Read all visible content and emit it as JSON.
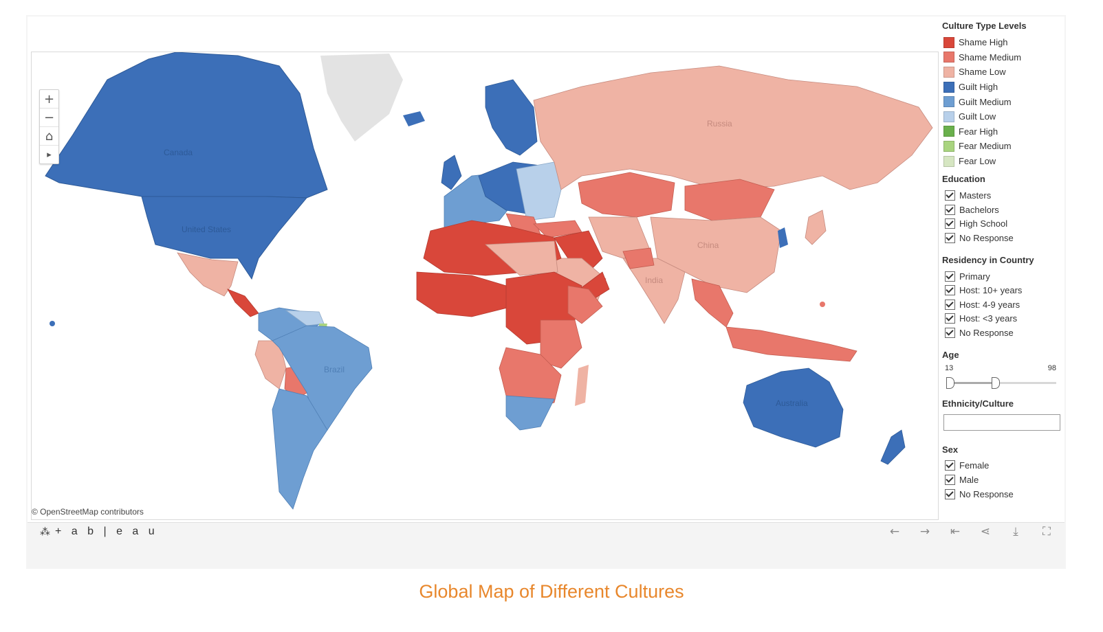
{
  "legend": {
    "culture_title": "Culture Type Levels",
    "culture_types": [
      {
        "label": "Shame High",
        "color": "#d9473a"
      },
      {
        "label": "Shame Medium",
        "color": "#e8776b"
      },
      {
        "label": "Shame Low",
        "color": "#efb3a4"
      },
      {
        "label": "Guilt High",
        "color": "#3c6fb8"
      },
      {
        "label": "Guilt Medium",
        "color": "#6e9ed2"
      },
      {
        "label": "Guilt Low",
        "color": "#b8d0ea"
      },
      {
        "label": "Fear High",
        "color": "#6ab04c"
      },
      {
        "label": "Fear Medium",
        "color": "#a9d47f"
      },
      {
        "label": "Fear Low",
        "color": "#d6e6c2"
      }
    ]
  },
  "filters": {
    "education": {
      "title": "Education",
      "options": [
        "Masters",
        "Bachelors",
        "High School",
        "No Response"
      ]
    },
    "residency": {
      "title": "Residency in Country",
      "options": [
        "Primary",
        "Host: 10+ years",
        "Host: 4-9 years",
        "Host: <3 years",
        "No Response"
      ]
    },
    "age": {
      "title": "Age",
      "min": "13",
      "max": "98"
    },
    "ethnicity": {
      "title": "Ethnicity/Culture",
      "value": ""
    },
    "sex": {
      "title": "Sex",
      "options": [
        "Female",
        "Male",
        "No Response"
      ]
    }
  },
  "map": {
    "attribution": "© OpenStreetMap contributors",
    "country_labels": [
      "Canada",
      "United States",
      "Brazil",
      "Russia",
      "China",
      "India",
      "Australia"
    ]
  },
  "zoom_controls": {
    "zoom_in": "+",
    "zoom_out": "−",
    "home": "⌂",
    "expand": "▸"
  },
  "toolbar": {
    "brand": "+ a b | e a u",
    "icons": [
      "undo-icon",
      "redo-icon",
      "revert-icon",
      "share-icon",
      "download-icon",
      "fullscreen-icon"
    ]
  },
  "caption": "Global Map of Different Cultures"
}
